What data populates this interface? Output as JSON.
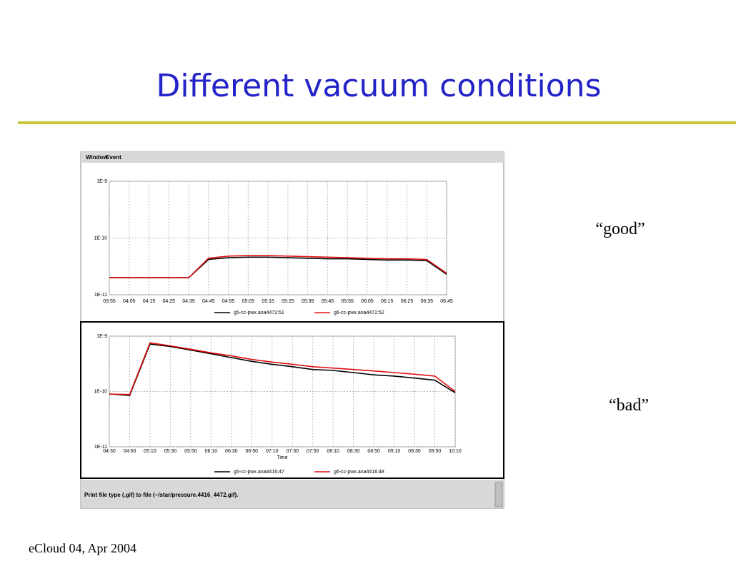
{
  "slide": {
    "title": "Different vacuum conditions",
    "footer": "eCloud 04, Apr 2004",
    "label_good": "“good”",
    "label_bad": "“bad”"
  },
  "window": {
    "menu": [
      "Window",
      "Event"
    ],
    "status": "Print file type (.gif) to file (~/star/pressure.4416_4472.gif)."
  },
  "chart_data": [
    {
      "type": "line",
      "log_scale": true,
      "grid": true,
      "categories": [
        "03:55",
        "04:05",
        "04:15",
        "04:25",
        "04:35",
        "04:45",
        "04:55",
        "05:05",
        "05:15",
        "05:25",
        "05:35",
        "05:45",
        "05:55",
        "06:05",
        "06:15",
        "06:25",
        "06:35",
        "06:45"
      ],
      "ylim": [
        1e-11,
        1e-09
      ],
      "yticks": [
        {
          "value": 1e-11,
          "label": "1E-11"
        },
        {
          "value": 1e-10,
          "label": "1E-10"
        },
        {
          "value": 1e-09,
          "label": "1E-9"
        }
      ],
      "series": [
        {
          "name": "g5-cc-pwx.ana4472:51",
          "color": "#000000",
          "values": [
            2e-11,
            2e-11,
            2e-11,
            2e-11,
            2e-11,
            4.2e-11,
            4.5e-11,
            4.6e-11,
            4.6e-11,
            4.5e-11,
            4.4e-11,
            4.3e-11,
            4.3e-11,
            4.2e-11,
            4.1e-11,
            4.1e-11,
            4e-11,
            2.3e-11
          ]
        },
        {
          "name": "g6-cc-pwx.ana4472:52",
          "color": "#e01010",
          "values": [
            2e-11,
            2e-11,
            2e-11,
            2e-11,
            2e-11,
            4.4e-11,
            4.8e-11,
            4.9e-11,
            4.9e-11,
            4.8e-11,
            4.7e-11,
            4.6e-11,
            4.5e-11,
            4.4e-11,
            4.3e-11,
            4.3e-11,
            4.2e-11,
            2.4e-11
          ]
        }
      ]
    },
    {
      "type": "line",
      "log_scale": true,
      "grid": true,
      "x_label": "Time",
      "categories": [
        "04:30",
        "04:50",
        "05:10",
        "05:30",
        "05:50",
        "06:10",
        "06:30",
        "06:50",
        "07:10",
        "07:30",
        "07:50",
        "08:10",
        "08:30",
        "08:50",
        "09:10",
        "09:30",
        "09:50",
        "10:10"
      ],
      "ylim": [
        1e-11,
        1e-09
      ],
      "yticks": [
        {
          "value": 1e-11,
          "label": "1E-11"
        },
        {
          "value": 1e-10,
          "label": "1E-10"
        },
        {
          "value": 1e-09,
          "label": "1E-9"
        }
      ],
      "series": [
        {
          "name": "g5-cc-pwx.ana4416:47",
          "color": "#000000",
          "values": [
            9e-11,
            8.5e-11,
            7.2e-10,
            6.5e-10,
            5.6e-10,
            4.8e-10,
            4.1e-10,
            3.5e-10,
            3.1e-10,
            2.8e-10,
            2.5e-10,
            2.4e-10,
            2.2e-10,
            2e-10,
            1.9e-10,
            1.75e-10,
            1.6e-10,
            9.5e-11
          ]
        },
        {
          "name": "g6-cc-pwx.ana4416:48",
          "color": "#e01010",
          "values": [
            9e-11,
            8.8e-11,
            7.6e-10,
            6.7e-10,
            5.8e-10,
            5e-10,
            4.4e-10,
            3.8e-10,
            3.4e-10,
            3.1e-10,
            2.8e-10,
            2.65e-10,
            2.5e-10,
            2.35e-10,
            2.2e-10,
            2.05e-10,
            1.9e-10,
            1e-10
          ]
        }
      ]
    }
  ]
}
